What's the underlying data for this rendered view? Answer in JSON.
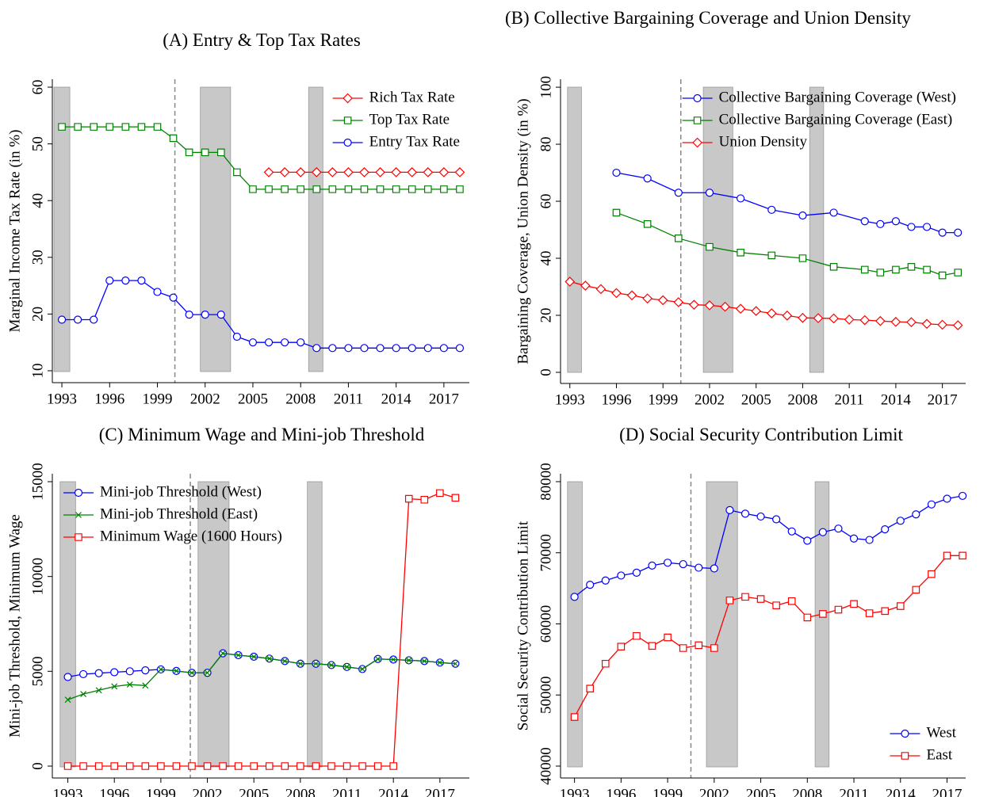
{
  "chart_data": [
    {
      "type": "line",
      "title": "(A) Entry & Top Tax Rates",
      "ylabel": "Marginal Income Tax Rate (in %)",
      "x": [
        1993,
        1994,
        1995,
        1996,
        1997,
        1998,
        1999,
        2000,
        2001,
        2002,
        2003,
        2004,
        2005,
        2006,
        2007,
        2008,
        2009,
        2010,
        2011,
        2012,
        2013,
        2014,
        2015,
        2016,
        2017,
        2018
      ],
      "series": [
        {
          "name": "Rich Tax Rate",
          "color": "#ff0000",
          "marker": "diamond",
          "values": [
            null,
            null,
            null,
            null,
            null,
            null,
            null,
            null,
            null,
            null,
            null,
            null,
            null,
            45,
            45,
            45,
            45,
            45,
            45,
            45,
            45,
            45,
            45,
            45,
            45,
            45
          ]
        },
        {
          "name": "Top Tax Rate",
          "color": "#008000",
          "marker": "square",
          "values": [
            53,
            53,
            53,
            53,
            53,
            53,
            53,
            51,
            48.5,
            48.5,
            48.5,
            45,
            42,
            42,
            42,
            42,
            42,
            42,
            42,
            42,
            42,
            42,
            42,
            42,
            42,
            42
          ]
        },
        {
          "name": "Entry Tax Rate",
          "color": "#0000ff",
          "marker": "circle",
          "values": [
            19,
            19,
            19,
            25.9,
            25.9,
            25.9,
            23.9,
            22.9,
            19.9,
            19.9,
            19.9,
            16,
            15,
            15,
            15,
            15,
            14,
            14,
            14,
            14,
            14,
            14,
            14,
            14,
            14,
            14
          ]
        }
      ],
      "xlim": [
        1992.4,
        2018.6
      ],
      "xticks": [
        1993,
        1996,
        1999,
        2002,
        2005,
        2008,
        2011,
        2014,
        2017
      ],
      "ylim": [
        7.9,
        61.4
      ],
      "yticks": [
        10,
        20,
        30,
        40,
        50,
        60
      ],
      "shaded": [
        [
          1992.5,
          1993.5
        ],
        [
          2001.7,
          2003.6
        ],
        [
          2008.5,
          2009.4
        ]
      ],
      "vline": 2000.1,
      "legend": "upper right"
    },
    {
      "type": "line",
      "title": "(B) Collective Bargaining Coverage and Union Density",
      "ylabel": "Bargaining Coverage, Union Density (in %)",
      "x": [
        1993,
        1994,
        1995,
        1996,
        1997,
        1998,
        1999,
        2000,
        2001,
        2002,
        2003,
        2004,
        2005,
        2006,
        2007,
        2008,
        2009,
        2010,
        2011,
        2012,
        2013,
        2014,
        2015,
        2016,
        2017,
        2018
      ],
      "series": [
        {
          "name": "Collective Bargaining Coverage (West)",
          "color": "#0000ff",
          "marker": "circle",
          "x": [
            1996,
            1998,
            2000,
            2002,
            2004,
            2006,
            2008,
            2010,
            2012,
            2013,
            2014,
            2015,
            2016,
            2017,
            2018
          ],
          "values": [
            70,
            68,
            63,
            63,
            61,
            57,
            55,
            56,
            53,
            52,
            53,
            51,
            51,
            49,
            49
          ]
        },
        {
          "name": "Collective Bargaining Coverage (East)",
          "color": "#008000",
          "marker": "square",
          "x": [
            1996,
            1998,
            2000,
            2002,
            2004,
            2006,
            2008,
            2010,
            2012,
            2013,
            2014,
            2015,
            2016,
            2017,
            2018
          ],
          "values": [
            56,
            52,
            47,
            44,
            42,
            41,
            40,
            37,
            36,
            35,
            36,
            37,
            36,
            34,
            35
          ]
        },
        {
          "name": "Union Density",
          "color": "#ff0000",
          "marker": "diamond",
          "values": [
            31.8,
            30.4,
            29.2,
            27.8,
            27,
            25.9,
            25.3,
            24.6,
            23.7,
            23.5,
            23,
            22.3,
            21.5,
            20.7,
            19.9,
            19.1,
            19,
            18.9,
            18.5,
            18.3,
            18,
            17.7,
            17.6,
            17,
            16.7,
            16.5
          ]
        }
      ],
      "xlim": [
        1992.4,
        2018.5
      ],
      "xticks": [
        1993,
        1996,
        1999,
        2002,
        2005,
        2008,
        2011,
        2014,
        2017
      ],
      "ylim": [
        -3.9,
        102.8
      ],
      "yticks": [
        0,
        20,
        40,
        60,
        80,
        100
      ],
      "shaded": [
        [
          1992.85,
          1993.75
        ],
        [
          2001.6,
          2003.5
        ],
        [
          2008.45,
          2009.35
        ]
      ],
      "vline": 2000.15,
      "legend": "upper right"
    },
    {
      "type": "line",
      "title": "(C) Minimum Wage and Mini-job Threshold",
      "ylabel": "Mini-job Threshold, Minimum Wage",
      "x": [
        1993,
        1994,
        1995,
        1996,
        1997,
        1998,
        1999,
        2000,
        2001,
        2002,
        2003,
        2004,
        2005,
        2006,
        2007,
        2008,
        2009,
        2010,
        2011,
        2012,
        2013,
        2014,
        2015,
        2016,
        2017,
        2018
      ],
      "series": [
        {
          "name": "Mini-job Threshold (West)",
          "color": "#0000ff",
          "marker": "circle",
          "values": [
            4700,
            4850,
            4900,
            4950,
            5000,
            5050,
            5100,
            5020,
            4920,
            4920,
            5950,
            5850,
            5770,
            5670,
            5540,
            5400,
            5400,
            5330,
            5230,
            5120,
            5650,
            5620,
            5580,
            5540,
            5460,
            5400
          ]
        },
        {
          "name": "Mini-job Threshold (East)",
          "color": "#008000",
          "marker": "x",
          "values": [
            3500,
            3800,
            4000,
            4200,
            4300,
            4250,
            5100,
            5020,
            4920,
            4920,
            5950,
            5850,
            5770,
            5670,
            5540,
            5400,
            5400,
            5330,
            5230,
            5120,
            5650,
            5620,
            5580,
            5540,
            5460,
            5400
          ]
        },
        {
          "name": "Minimum Wage (1600 Hours)",
          "color": "#ff0000",
          "marker": "square",
          "values": [
            0,
            0,
            0,
            0,
            0,
            0,
            0,
            0,
            0,
            0,
            0,
            0,
            0,
            0,
            0,
            0,
            0,
            0,
            0,
            0,
            0,
            0,
            14100,
            14050,
            14400,
            14150
          ]
        }
      ],
      "xlim": [
        1992.0,
        2018.9
      ],
      "xticks": [
        1993,
        1996,
        1999,
        2002,
        2005,
        2008,
        2011,
        2014,
        2017
      ],
      "ylim": [
        -627,
        15418
      ],
      "yticks": [
        0,
        5000,
        10000,
        15000
      ],
      "shaded": [
        [
          1992.5,
          1993.5
        ],
        [
          2001.4,
          2003.4
        ],
        [
          2008.45,
          2009.4
        ]
      ],
      "vline": 2000.9,
      "legend": "upper left"
    },
    {
      "type": "line",
      "title": "(D) Social Security Contribution Limit",
      "ylabel": "Social Security Contribution Limit",
      "x": [
        1993,
        1994,
        1995,
        1996,
        1997,
        1998,
        1999,
        2000,
        2001,
        2002,
        2003,
        2004,
        2005,
        2006,
        2007,
        2008,
        2009,
        2010,
        2011,
        2012,
        2013,
        2014,
        2015,
        2016,
        2017,
        2018
      ],
      "series": [
        {
          "name": "West",
          "color": "#0000ff",
          "marker": "circle",
          "values": [
            63800,
            65500,
            66100,
            66800,
            67200,
            68200,
            68600,
            68400,
            67900,
            67800,
            76000,
            75500,
            75100,
            74700,
            73000,
            71700,
            72900,
            73400,
            72000,
            71800,
            73300,
            74500,
            75400,
            76800,
            77600,
            78000
          ]
        },
        {
          "name": "East",
          "color": "#ff0000",
          "marker": "square",
          "values": [
            46900,
            50900,
            54400,
            56800,
            58300,
            56900,
            58100,
            56600,
            57000,
            56600,
            63300,
            63800,
            63500,
            62600,
            63200,
            60900,
            61400,
            62000,
            62800,
            61500,
            61800,
            62500,
            64800,
            67000,
            69600,
            69600
          ]
        }
      ],
      "xlim": [
        1992.1,
        2018.2
      ],
      "xticks": [
        1993,
        1996,
        1999,
        2002,
        2005,
        2008,
        2011,
        2014,
        2017
      ],
      "ylim": [
        38330,
        81110
      ],
      "yticks": [
        40000,
        50000,
        60000,
        70000,
        80000
      ],
      "shaded": [
        [
          1992.55,
          1993.5
        ],
        [
          2001.5,
          2003.5
        ],
        [
          2008.5,
          2009.4
        ]
      ],
      "vline": 2000.5,
      "legend": "lower right"
    }
  ]
}
